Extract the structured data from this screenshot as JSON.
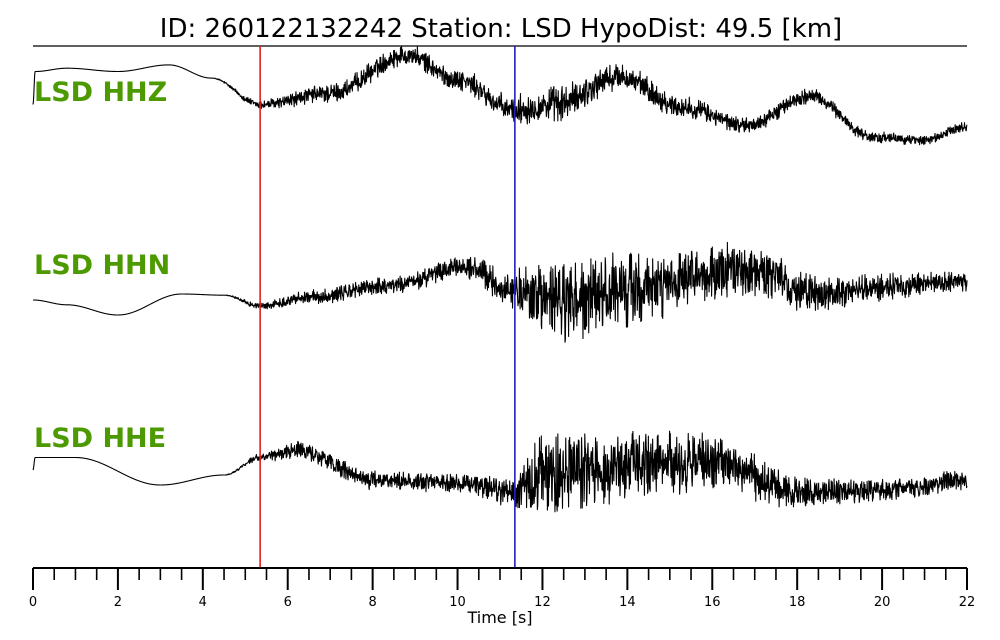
{
  "title": "ID: 260122132242   Station: LSD   HypoDist:    49.5 [km]",
  "colors": {
    "trace": "#000000",
    "label": "#4c9a00",
    "p_pick": "#e02020",
    "s_pick": "#2020c0"
  },
  "chart_data": {
    "type": "line",
    "xlabel": "Time [s]",
    "xlim": [
      0,
      22
    ],
    "x_ticks": [
      "0",
      "2",
      "4",
      "6",
      "8",
      "10",
      "12",
      "14",
      "16",
      "18",
      "20",
      "22"
    ],
    "minor_tick_step": 0.5,
    "picks": [
      {
        "time": 5.35,
        "color": "#e02020"
      },
      {
        "time": 11.35,
        "color": "#2020c0"
      }
    ],
    "series": [
      {
        "name": "LSD HHZ",
        "key_times": [
          0,
          0.05,
          0.8,
          2.0,
          3.2,
          4.2,
          5.35,
          7.0,
          8.8,
          10.0,
          11.3,
          12.3,
          13.8,
          15.3,
          16.8,
          18.3,
          19.8,
          21.0,
          22.0
        ],
        "key_values": [
          0.1,
          0.7,
          0.76,
          0.7,
          0.82,
          0.58,
          0.1,
          0.3,
          1.0,
          0.55,
          0.0,
          0.1,
          0.6,
          0.05,
          -0.28,
          0.25,
          -0.5,
          -0.55,
          -0.3
        ],
        "noise": [
          0.0,
          0.0,
          0.0,
          0.0,
          0.0,
          0.0,
          0.06,
          0.13,
          0.13,
          0.13,
          0.18,
          0.24,
          0.18,
          0.14,
          0.1,
          0.1,
          0.07,
          0.06,
          0.06
        ]
      },
      {
        "name": "LSD HHN",
        "key_times": [
          0,
          0.8,
          2.0,
          3.5,
          4.5,
          5.35,
          6.5,
          8.5,
          10.2,
          11.3,
          12.5,
          14.5,
          16.8,
          18.5,
          20.5,
          22.0
        ],
        "key_values": [
          0.0,
          -0.08,
          -0.25,
          0.1,
          0.08,
          -0.1,
          0.05,
          0.25,
          0.55,
          0.15,
          -0.05,
          0.2,
          0.5,
          0.1,
          0.25,
          0.3
        ],
        "noise": [
          0.0,
          0.0,
          0.0,
          0.0,
          0.0,
          0.04,
          0.08,
          0.11,
          0.12,
          0.22,
          0.55,
          0.38,
          0.3,
          0.2,
          0.14,
          0.12
        ]
      },
      {
        "name": "LSD HHE",
        "key_times": [
          0,
          0.05,
          1.0,
          3.0,
          4.5,
          5.35,
          6.2,
          8.0,
          10.0,
          11.3,
          12.0,
          14.0,
          16.0,
          18.0,
          20.0,
          22.0
        ],
        "key_values": [
          0.0,
          0.25,
          0.25,
          -0.3,
          -0.1,
          0.25,
          0.4,
          -0.2,
          -0.25,
          -0.45,
          -0.1,
          0.1,
          0.15,
          -0.45,
          -0.4,
          -0.2
        ],
        "noise": [
          0.0,
          0.0,
          0.0,
          0.0,
          0.0,
          0.05,
          0.13,
          0.13,
          0.13,
          0.2,
          0.6,
          0.48,
          0.38,
          0.22,
          0.15,
          0.14
        ]
      }
    ]
  }
}
